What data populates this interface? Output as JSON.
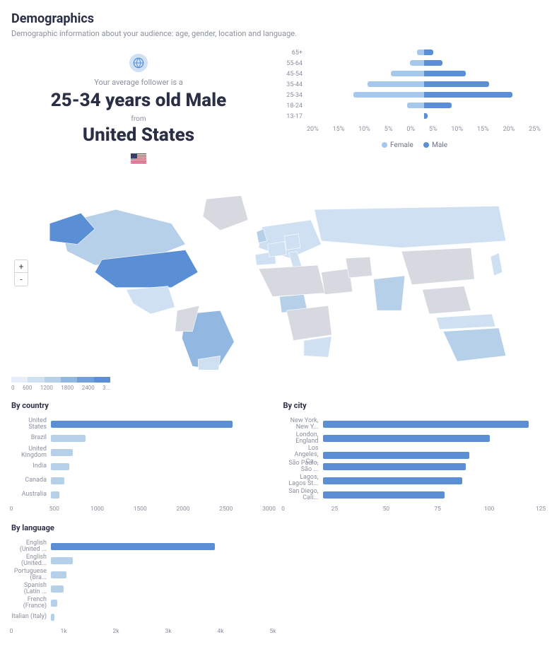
{
  "colors": {
    "female": "#a5c8ec",
    "male": "#5a8fd6",
    "bar_primary": "#5a8fd6",
    "bar_fade": "#b7d0ea",
    "text_muted": "#8a8f9e",
    "text_strong": "#2a2f45",
    "map_land": "#d6d9e0",
    "map_water": "#ffffff"
  },
  "header": {
    "title": "Demographics",
    "subtitle": "Demographic information about your audience: age, gender, location and language."
  },
  "summary": {
    "intro": "Your average follower is a",
    "headline_age_gender": "25-34 years old Male",
    "from_label": "from",
    "headline_location": "United States",
    "flag_country": "United States"
  },
  "age_gender": {
    "type": "population_pyramid",
    "buckets": [
      "65+",
      "55-64",
      "45-54",
      "35-44",
      "25-34",
      "18-24",
      "13-17"
    ],
    "female_pct": [
      1.5,
      3,
      7,
      12,
      15,
      3.5,
      0
    ],
    "male_pct": [
      2,
      4,
      9,
      14,
      19,
      6,
      0.8
    ],
    "axis_ticks_left": [
      "20%",
      "15%",
      "10%",
      "5%",
      "0%"
    ],
    "axis_ticks_right": [
      "0%",
      "5%",
      "10%",
      "15%",
      "20%",
      "25%"
    ],
    "xmax_pct": 25,
    "legend": {
      "female": "Female",
      "male": "Male"
    }
  },
  "map": {
    "type": "choropleth_world",
    "legend_ticks": [
      "0",
      "600",
      "1200",
      "1800",
      "2400",
      "3..."
    ],
    "legend_colors": [
      "#e6eff8",
      "#cfe0f2",
      "#b7d0ea",
      "#92b8e1",
      "#6fa0d8",
      "#5a8fd6"
    ],
    "highlight": "United States",
    "intensity": {
      "United States": 5,
      "Brazil": 3,
      "United Kingdom": 2,
      "India": 2,
      "Canada": 2,
      "Australia": 2,
      "Russia": 1,
      "China": 0,
      "Mexico": 1,
      "Argentina": 1,
      "SouthAfrica": 1,
      "Nigeria": 2,
      "France": 1,
      "Germany": 1,
      "Spain": 1,
      "Italy": 1,
      "Japan": 1,
      "Indonesia": 1,
      "Saudi": 0,
      "Iran": 0,
      "EuropeOther": 1
    }
  },
  "by_country": {
    "title": "By country",
    "type": "horizontal_bar",
    "xmax": 3000,
    "ticks": [
      0,
      500,
      1000,
      1500,
      2000,
      2500,
      3000
    ],
    "categories": [
      "United States",
      "Brazil",
      "United Kingdom",
      "India",
      "Canada",
      "Australia"
    ],
    "values": [
      2500,
      480,
      300,
      250,
      180,
      120
    ],
    "primary_count": 1
  },
  "by_city": {
    "title": "By city",
    "type": "horizontal_bar",
    "xmax": 125,
    "ticks": [
      0,
      25,
      50,
      75,
      100,
      125
    ],
    "categories": [
      "New York, New Y...",
      "London, England",
      "Los Angeles, Ca...",
      "São Paulo, São ...",
      "Lagos, Lagos St...",
      "San Diego, Cali..."
    ],
    "values": [
      118,
      96,
      84,
      82,
      80,
      70
    ],
    "primary_count": 6
  },
  "by_language": {
    "title": "By language",
    "type": "horizontal_bar",
    "xmax": 5000,
    "ticks": [
      0,
      1000,
      2000,
      3000,
      4000,
      5000
    ],
    "tick_labels": [
      "0",
      "1k",
      "2k",
      "3k",
      "4k",
      "5k"
    ],
    "categories": [
      "English (United ...",
      "English (United...",
      "Portuguese (Bra...",
      "Spanish (Latin ...",
      "French (France)",
      "Italian (Italy)"
    ],
    "values": [
      3700,
      500,
      350,
      280,
      150,
      80
    ],
    "primary_count": 1
  }
}
